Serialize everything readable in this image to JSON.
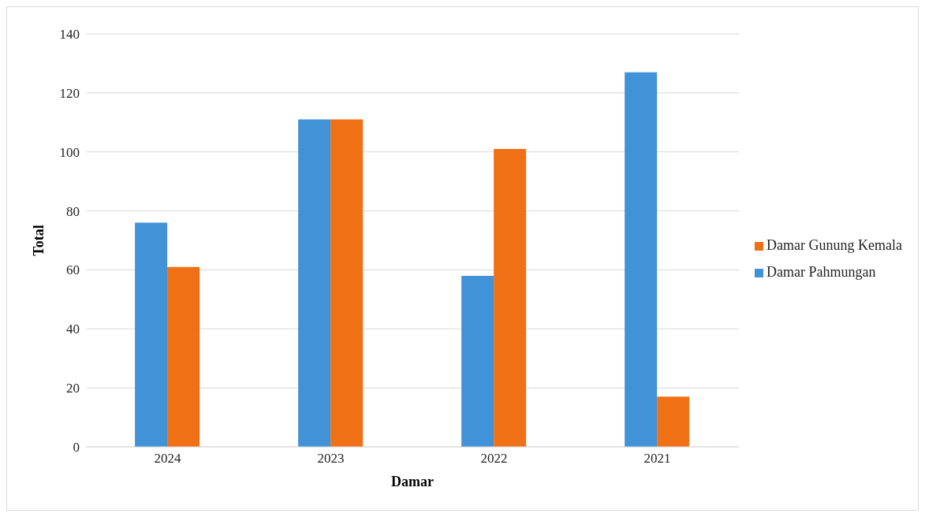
{
  "chart_data": {
    "type": "bar",
    "xlabel": "Damar",
    "ylabel": "Total",
    "categories": [
      "2024",
      "2023",
      "2022",
      "2021"
    ],
    "series": [
      {
        "name": "Damar Pahmungan",
        "color": "#4292d8",
        "values": [
          76,
          111,
          58,
          127
        ]
      },
      {
        "name": "Damar Gunung Kemala",
        "color": "#f07016",
        "values": [
          61,
          111,
          101,
          17
        ]
      }
    ],
    "ylim": [
      0,
      140
    ],
    "yticks": [
      0,
      20,
      40,
      60,
      80,
      100,
      120,
      140
    ],
    "grid": "y",
    "legend": "right"
  }
}
